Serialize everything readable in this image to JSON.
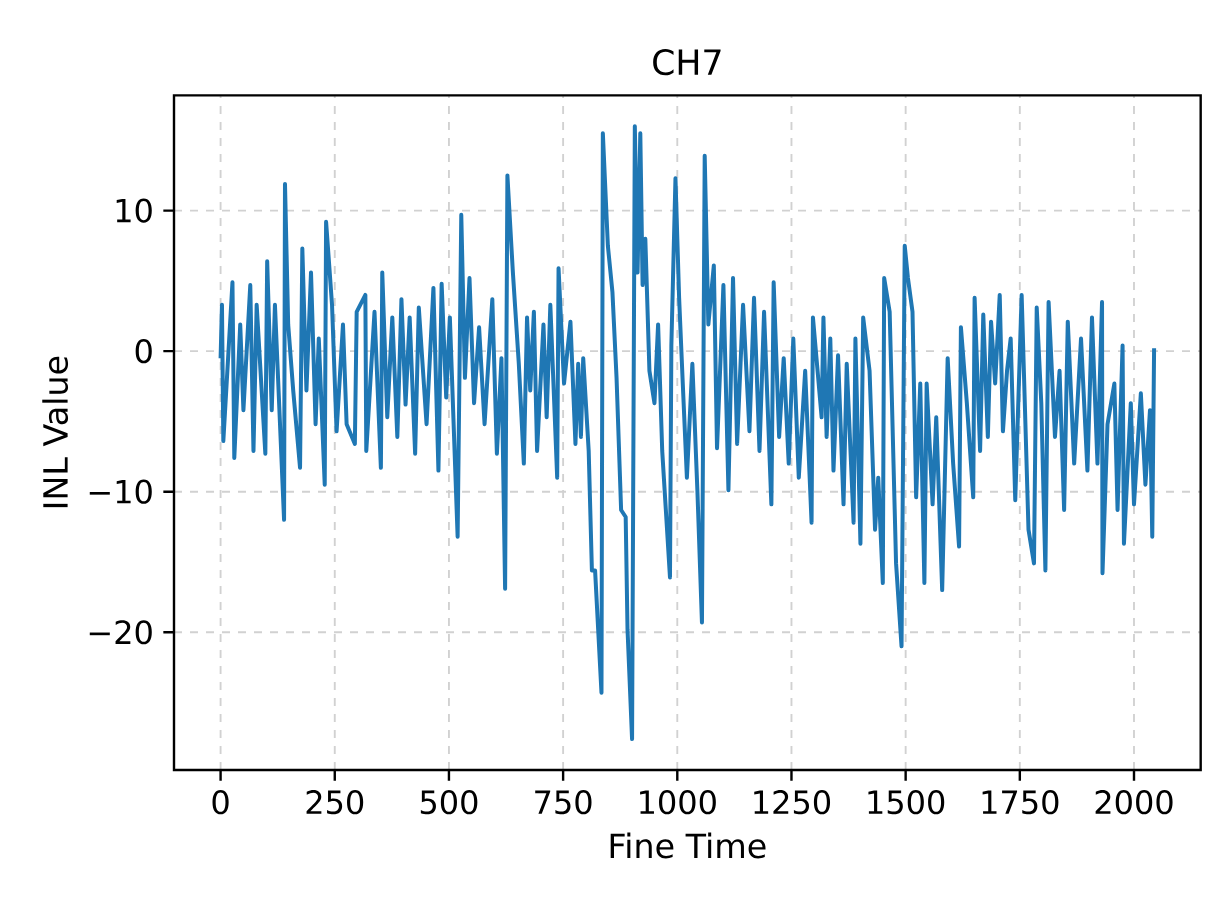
{
  "chart_data": {
    "type": "line",
    "title": "CH7",
    "xlabel": "Fine Time",
    "ylabel": "INL Value",
    "x": [
      0,
      3,
      6,
      26,
      30,
      43,
      50,
      65,
      72,
      79,
      98,
      102,
      112,
      119,
      139,
      141,
      148,
      159,
      174,
      179,
      188,
      198,
      208,
      215,
      228,
      231,
      244,
      254,
      268,
      276,
      294,
      298,
      317,
      319,
      337,
      351,
      354,
      365,
      376,
      387,
      396,
      405,
      414,
      426,
      434,
      451,
      466,
      477,
      484,
      494,
      502,
      519,
      527,
      535,
      545,
      555,
      566,
      578,
      595,
      605,
      615,
      623,
      628,
      640,
      653,
      664,
      671,
      678,
      686,
      693,
      707,
      714,
      722,
      737,
      740,
      752,
      766,
      777,
      783,
      789,
      794,
      806,
      813,
      820,
      834,
      837,
      848,
      858,
      867,
      877,
      887,
      891,
      901,
      907,
      913,
      919,
      924,
      930,
      939,
      950,
      958,
      967,
      984,
      987,
      996,
      1004,
      1012,
      1021,
      1033,
      1044,
      1054,
      1060,
      1068,
      1080,
      1087,
      1101,
      1112,
      1122,
      1131,
      1144,
      1158,
      1168,
      1180,
      1190,
      1206,
      1211,
      1223,
      1233,
      1244,
      1254,
      1266,
      1280,
      1294,
      1297,
      1316,
      1320,
      1327,
      1335,
      1342,
      1352,
      1364,
      1371,
      1386,
      1390,
      1401,
      1407,
      1421,
      1433,
      1440,
      1450,
      1453,
      1465,
      1479,
      1491,
      1498,
      1505,
      1515,
      1523,
      1532,
      1541,
      1546,
      1559,
      1567,
      1580,
      1592,
      1604,
      1617,
      1621,
      1634,
      1648,
      1651,
      1663,
      1670,
      1680,
      1687,
      1696,
      1706,
      1713,
      1722,
      1730,
      1740,
      1754,
      1769,
      1781,
      1787,
      1797,
      1806,
      1813,
      1827,
      1837,
      1847,
      1855,
      1869,
      1884,
      1898,
      1908,
      1920,
      1930,
      1931,
      1942,
      1957,
      1964,
      1975,
      1978,
      1993,
      2000,
      2015,
      2025,
      2035,
      2040,
      2044
    ],
    "series": [
      {
        "color": "#1f77b4",
        "values": [
          -0.5,
          3.3,
          -6.4,
          4.9,
          -7.6,
          1.9,
          -4.2,
          4.7,
          -7.1,
          3.3,
          -7.3,
          6.4,
          -4.2,
          3.3,
          -12,
          11.9,
          1.9,
          -2.8,
          -8.3,
          7.3,
          -2.8,
          5.6,
          -5.2,
          0.9,
          -9.5,
          9.2,
          3.3,
          -5.7,
          1.9,
          -5.2,
          -6.6,
          2.8,
          4.0,
          -7.1,
          2.8,
          -8.3,
          5.6,
          -4.7,
          2.4,
          -6.1,
          3.7,
          -3.8,
          2.4,
          -7.3,
          3.1,
          -5.2,
          4.5,
          -8.5,
          4.8,
          -3.3,
          2.4,
          -13.2,
          9.7,
          -1.9,
          5.2,
          -3.7,
          1.7,
          -5.2,
          3.7,
          -7.3,
          -0.5,
          -16.9,
          12.5,
          5.6,
          -0.9,
          -8,
          2.4,
          -2.8,
          2.8,
          -7.1,
          1.9,
          -4.7,
          3.3,
          -9,
          5.9,
          -2.3,
          2.1,
          -6.6,
          -0.9,
          -6.1,
          -0.5,
          -7.1,
          -15.6,
          -15.6,
          -24.3,
          15.5,
          7.5,
          4.2,
          -1.9,
          -11.3,
          -11.8,
          -19.8,
          -27.6,
          16,
          5.6,
          15.5,
          4.7,
          8,
          -1.4,
          -3.7,
          1.9,
          -7.1,
          -16.1,
          0.4,
          12.3,
          3.8,
          -2.3,
          -9,
          -0.9,
          -9.9,
          -19.3,
          13.9,
          1.9,
          6.1,
          -6.9,
          4.7,
          -9.9,
          5.2,
          -6.6,
          3.3,
          -5.7,
          3.8,
          -7.1,
          2.8,
          -10.9,
          4.9,
          -6.1,
          -0.5,
          -8,
          0.9,
          -9,
          -1.4,
          -12.2,
          2.4,
          -4.7,
          2.4,
          -6.1,
          0.9,
          -8.5,
          -0.3,
          -10.9,
          -0.9,
          -12.2,
          0.9,
          -13.7,
          2.4,
          -1.4,
          -12.7,
          -9,
          -16.5,
          5.2,
          2.8,
          -15.1,
          -21,
          7.5,
          5.2,
          2.8,
          -10.4,
          -2.3,
          -16.5,
          -2.3,
          -10.9,
          -4.7,
          -17,
          -0.5,
          -8,
          -13.9,
          1.7,
          -3.7,
          -10.4,
          3.8,
          -7.1,
          2.6,
          -6.1,
          2.1,
          -2.3,
          4.0,
          -5.7,
          -1.4,
          0.9,
          -10.6,
          4.0,
          -12.7,
          -15.1,
          3.1,
          -3.7,
          -15.6,
          3.5,
          -6.1,
          -1.4,
          -11.3,
          2.1,
          -8,
          0.9,
          -8.5,
          2.4,
          -8,
          3.5,
          -15.8,
          -5.2,
          -2.3,
          -11.3,
          0.4,
          -13.7,
          -3.7,
          -10.9,
          -3,
          -9.5,
          -4.2,
          -13.2,
          0.2
        ]
      }
    ],
    "xlim": [
      -102,
      2146
    ],
    "ylim": [
      -29.8,
      18.2
    ],
    "xticks": [
      0,
      250,
      500,
      750,
      1000,
      1250,
      1500,
      1750,
      2000
    ],
    "yticks": [
      {
        "value": -20,
        "label": "−20"
      },
      {
        "value": -10,
        "label": "−10"
      },
      0,
      10
    ],
    "grid": true,
    "line_style": "solid",
    "marker": "none"
  }
}
